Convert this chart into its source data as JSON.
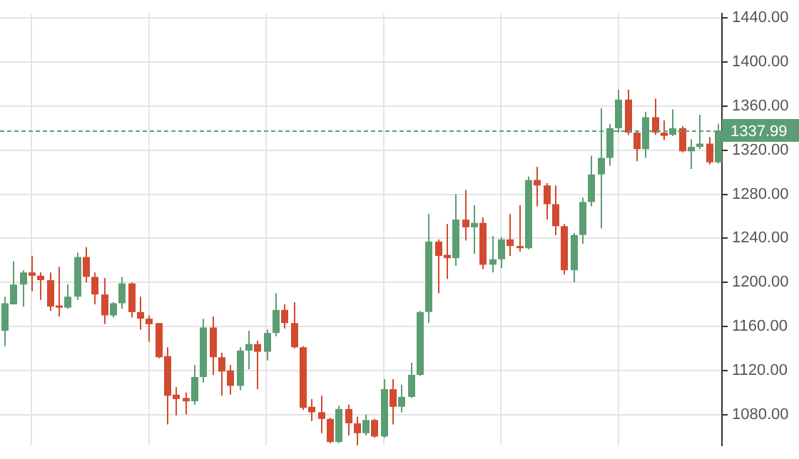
{
  "chart_data": {
    "type": "candlestick",
    "categories": [
      null,
      null,
      null,
      null,
      null,
      null,
      null,
      null,
      null,
      null,
      null,
      null,
      null,
      null,
      null,
      null,
      null,
      null,
      null,
      null,
      null,
      null,
      null,
      null,
      null,
      null,
      null,
      null,
      null,
      null,
      null,
      null,
      null,
      null,
      null,
      null,
      null,
      null,
      null,
      null,
      null,
      null,
      null,
      null,
      null,
      null,
      null,
      null,
      null,
      null,
      null,
      null,
      null,
      null,
      null,
      null,
      null,
      null,
      null,
      null,
      null,
      null,
      null,
      null,
      null,
      null,
      null,
      null,
      null,
      null,
      null,
      null,
      null,
      null,
      null,
      null,
      null,
      null,
      null,
      null
    ],
    "ohlc": [
      [
        1156,
        1187,
        1142,
        1181
      ],
      [
        1180,
        1219,
        1180,
        1198
      ],
      [
        1198,
        1211,
        1178,
        1209
      ],
      [
        1209,
        1224,
        1192,
        1206
      ],
      [
        1206,
        1209,
        1184,
        1202
      ],
      [
        1202,
        1209,
        1174,
        1178
      ],
      [
        1179,
        1214,
        1169,
        1177
      ],
      [
        1177,
        1198,
        1176,
        1187
      ],
      [
        1187,
        1227,
        1184,
        1223
      ],
      [
        1223,
        1232,
        1200,
        1205
      ],
      [
        1205,
        1209,
        1180,
        1189
      ],
      [
        1189,
        1204,
        1162,
        1170
      ],
      [
        1170,
        1182,
        1168,
        1181
      ],
      [
        1181,
        1205,
        1176,
        1199
      ],
      [
        1199,
        1200,
        1168,
        1173
      ],
      [
        1173,
        1187,
        1157,
        1167
      ],
      [
        1167,
        1170,
        1146,
        1162
      ],
      [
        1163,
        1163,
        1131,
        1132
      ],
      [
        1133,
        1141,
        1071,
        1097
      ],
      [
        1098,
        1105,
        1079,
        1094
      ],
      [
        1095,
        1100,
        1080,
        1092
      ],
      [
        1092,
        1125,
        1089,
        1114
      ],
      [
        1114,
        1167,
        1109,
        1159
      ],
      [
        1159,
        1169,
        1116,
        1132
      ],
      [
        1132,
        1136,
        1097,
        1119
      ],
      [
        1120,
        1125,
        1098,
        1106
      ],
      [
        1106,
        1141,
        1102,
        1138
      ],
      [
        1138,
        1156,
        1121,
        1144
      ],
      [
        1144,
        1147,
        1103,
        1137
      ],
      [
        1137,
        1157,
        1129,
        1154
      ],
      [
        1154,
        1190,
        1151,
        1175
      ],
      [
        1175,
        1180,
        1158,
        1163
      ],
      [
        1163,
        1182,
        1140,
        1141
      ],
      [
        1141,
        1142,
        1084,
        1086
      ],
      [
        1087,
        1094,
        1074,
        1082
      ],
      [
        1082,
        1097,
        1063,
        1076
      ],
      [
        1076,
        1077,
        1054,
        1055
      ],
      [
        1055,
        1088,
        1054,
        1085
      ],
      [
        1085,
        1089,
        1061,
        1072
      ],
      [
        1072,
        1078,
        1052,
        1063
      ],
      [
        1063,
        1080,
        1061,
        1075
      ],
      [
        1075,
        1076,
        1059,
        1060
      ],
      [
        1060,
        1112,
        1059,
        1103
      ],
      [
        1103,
        1112,
        1071,
        1087
      ],
      [
        1087,
        1107,
        1082,
        1096
      ],
      [
        1096,
        1127,
        1095,
        1116
      ],
      [
        1116,
        1174,
        1115,
        1173
      ],
      [
        1173,
        1262,
        1163,
        1237
      ],
      [
        1237,
        1239,
        1190,
        1224
      ],
      [
        1225,
        1253,
        1203,
        1222
      ],
      [
        1222,
        1280,
        1215,
        1257
      ],
      [
        1257,
        1284,
        1238,
        1250
      ],
      [
        1250,
        1270,
        1226,
        1254
      ],
      [
        1254,
        1259,
        1212,
        1216
      ],
      [
        1216,
        1242,
        1209,
        1221
      ],
      [
        1221,
        1241,
        1213,
        1239
      ],
      [
        1239,
        1262,
        1224,
        1233
      ],
      [
        1233,
        1270,
        1228,
        1231
      ],
      [
        1231,
        1296,
        1230,
        1293
      ],
      [
        1293,
        1305,
        1269,
        1288
      ],
      [
        1288,
        1290,
        1257,
        1271
      ],
      [
        1271,
        1288,
        1243,
        1251
      ],
      [
        1251,
        1253,
        1207,
        1211
      ],
      [
        1211,
        1245,
        1200,
        1243
      ],
      [
        1243,
        1277,
        1235,
        1273
      ],
      [
        1273,
        1315,
        1269,
        1298
      ],
      [
        1298,
        1358,
        1249,
        1313
      ],
      [
        1313,
        1344,
        1306,
        1340
      ],
      [
        1340,
        1375,
        1336,
        1366
      ],
      [
        1366,
        1375,
        1334,
        1336
      ],
      [
        1336,
        1338,
        1310,
        1321
      ],
      [
        1321,
        1355,
        1313,
        1350
      ],
      [
        1350,
        1367,
        1334,
        1336
      ],
      [
        1336,
        1347,
        1329,
        1333
      ],
      [
        1334,
        1357,
        1333,
        1340
      ],
      [
        1340,
        1342,
        1318,
        1319
      ],
      [
        1319,
        1330,
        1303,
        1323
      ],
      [
        1323,
        1352,
        1321,
        1326
      ],
      [
        1326,
        1332,
        1307,
        1309
      ],
      [
        1309,
        1344,
        1308,
        1337.99
      ]
    ],
    "colors": [
      "#5c9e74",
      "#5c9e74",
      "#5c9e74",
      "#d24b30",
      "#d24b30",
      "#d24b30",
      "#d24b30",
      "#5c9e74",
      "#5c9e74",
      "#d24b30",
      "#d24b30",
      "#d24b30",
      "#5c9e74",
      "#5c9e74",
      "#d24b30",
      "#d24b30",
      "#d24b30",
      "#d24b30",
      "#d24b30",
      "#d24b30",
      "#d24b30",
      "#5c9e74",
      "#5c9e74",
      "#d24b30",
      "#d24b30",
      "#d24b30",
      "#5c9e74",
      "#5c9e74",
      "#d24b30",
      "#5c9e74",
      "#5c9e74",
      "#d24b30",
      "#d24b30",
      "#d24b30",
      "#d24b30",
      "#d24b30",
      "#d24b30",
      "#5c9e74",
      "#d24b30",
      "#d24b30",
      "#5c9e74",
      "#d24b30",
      "#5c9e74",
      "#d24b30",
      "#5c9e74",
      "#5c9e74",
      "#5c9e74",
      "#5c9e74",
      "#d24b30",
      "#d24b30",
      "#5c9e74",
      "#d24b30",
      "#5c9e74",
      "#d24b30",
      "#5c9e74",
      "#5c9e74",
      "#d24b30",
      "#d24b30",
      "#5c9e74",
      "#d24b30",
      "#d24b30",
      "#d24b30",
      "#d24b30",
      "#5c9e74",
      "#5c9e74",
      "#5c9e74",
      "#5c9e74",
      "#5c9e74",
      "#5c9e74",
      "#d24b30",
      "#d24b30",
      "#5c9e74",
      "#d24b30",
      "#d24b30",
      "#5c9e74",
      "#d24b30",
      "#5c9e74",
      "#5c9e74",
      "#d24b30",
      "#5c9e74"
    ],
    "ylim": [
      1052,
      1444
    ],
    "yticks": [
      {
        "value": 1080,
        "label": "1080.00"
      },
      {
        "value": 1120,
        "label": "1120.00"
      },
      {
        "value": 1160,
        "label": "1160.00"
      },
      {
        "value": 1200,
        "label": "1200.00"
      },
      {
        "value": 1240,
        "label": "1240.00"
      },
      {
        "value": 1280,
        "label": "1280.00"
      },
      {
        "value": 1320,
        "label": "1320.00"
      },
      {
        "value": 1360,
        "label": "1360.00"
      },
      {
        "value": 1400,
        "label": "1400.00"
      },
      {
        "value": 1440,
        "label": "1440.00"
      }
    ],
    "ref_lines": [
      {
        "axis": "y",
        "value": 1337.99,
        "label": "1337.99",
        "color": "#5c9e74",
        "line_style": "dashed"
      }
    ],
    "grid": true,
    "tick_labels": "y"
  }
}
